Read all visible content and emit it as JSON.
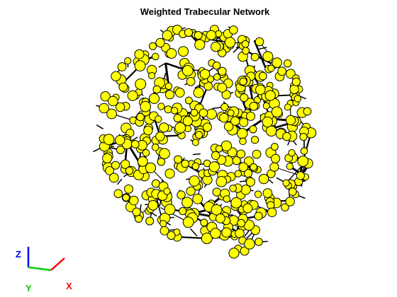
{
  "figure": {
    "title": "Weighted Trabecular Network",
    "background": "#ffffff",
    "node_color": "#ffff00",
    "node_edge_color": "#000000",
    "edge_color": "#000000"
  },
  "axes_triad": {
    "z_label": "Z",
    "y_label": "Y",
    "x_label": "X",
    "z_color": "#0000ff",
    "y_color": "#00cc00",
    "x_color": "#ff0000"
  }
}
